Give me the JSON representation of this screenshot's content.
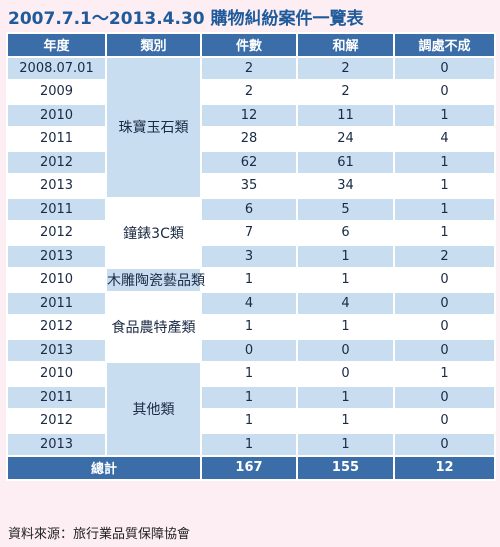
{
  "header": {
    "title": "2007.7.1～2013.4.30 購物糾紛案件一覽表"
  },
  "table": {
    "columns": [
      "年度",
      "類別",
      "件數",
      "和解",
      "調處不成"
    ],
    "groups": [
      {
        "category": "珠寶玉石類",
        "rows": [
          {
            "year": "2008.07.01",
            "count": 2,
            "settled": 2,
            "unsettled": 0
          },
          {
            "year": "2009",
            "count": 2,
            "settled": 2,
            "unsettled": 0
          },
          {
            "year": "2010",
            "count": 12,
            "settled": 11,
            "unsettled": 1
          },
          {
            "year": "2011",
            "count": 28,
            "settled": 24,
            "unsettled": 4
          },
          {
            "year": "2012",
            "count": 62,
            "settled": 61,
            "unsettled": 1
          },
          {
            "year": "2013",
            "count": 35,
            "settled": 34,
            "unsettled": 1
          }
        ]
      },
      {
        "category": "鐘錶3C類",
        "rows": [
          {
            "year": "2011",
            "count": 6,
            "settled": 5,
            "unsettled": 1
          },
          {
            "year": "2012",
            "count": 7,
            "settled": 6,
            "unsettled": 1
          },
          {
            "year": "2013",
            "count": 3,
            "settled": 1,
            "unsettled": 2
          }
        ]
      },
      {
        "category": "木雕陶瓷藝品類",
        "rows": [
          {
            "year": "2010",
            "count": 1,
            "settled": 1,
            "unsettled": 0
          }
        ]
      },
      {
        "category": "食品農特產類",
        "rows": [
          {
            "year": "2011",
            "count": 4,
            "settled": 4,
            "unsettled": 0
          },
          {
            "year": "2012",
            "count": 1,
            "settled": 1,
            "unsettled": 0
          },
          {
            "year": "2013",
            "count": 0,
            "settled": 0,
            "unsettled": 0
          }
        ]
      },
      {
        "category": "其他類",
        "rows": [
          {
            "year": "2010",
            "count": 1,
            "settled": 0,
            "unsettled": 1
          },
          {
            "year": "2011",
            "count": 1,
            "settled": 1,
            "unsettled": 0
          },
          {
            "year": "2012",
            "count": 1,
            "settled": 1,
            "unsettled": 0
          },
          {
            "year": "2013",
            "count": 1,
            "settled": 1,
            "unsettled": 0
          }
        ]
      }
    ],
    "total": {
      "label": "總計",
      "count": 167,
      "settled": 155,
      "unsettled": 12
    }
  },
  "footer": {
    "source": "資料來源：旅行業品質保障協會"
  }
}
